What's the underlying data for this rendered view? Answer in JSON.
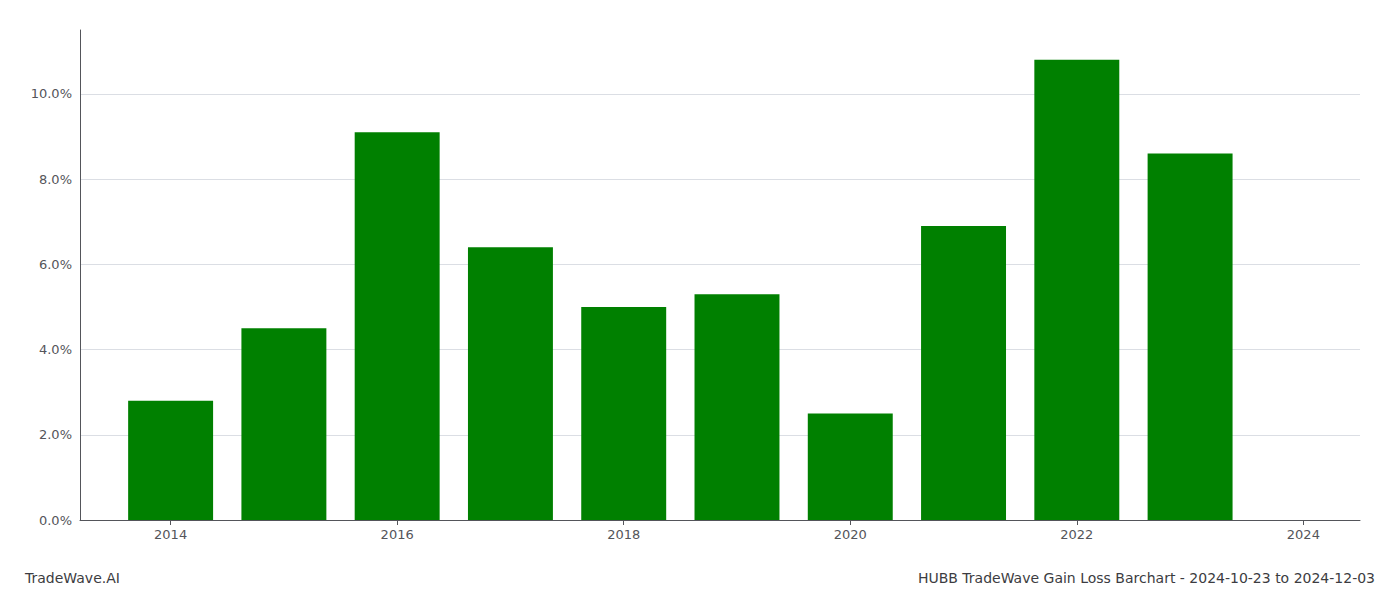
{
  "chart_data": {
    "type": "bar",
    "title": "HUBB TradeWave Gain Loss Barchart - 2024-10-23 to 2024-12-03",
    "annotations": [
      "TradeWave.AI"
    ],
    "x": [
      2014,
      2015,
      2016,
      2017,
      2018,
      2019,
      2020,
      2021,
      2022,
      2023
    ],
    "values": [
      0.028,
      0.045,
      0.091,
      0.064,
      0.05,
      0.053,
      0.025,
      0.069,
      0.108,
      0.086
    ],
    "color": "#008000",
    "xlim": [
      2013.2,
      2024.5
    ],
    "xticks": [
      2014,
      2016,
      2018,
      2020,
      2022,
      2024
    ],
    "ylim": [
      0.0,
      0.115
    ],
    "yticks": [
      {
        "value": 0.0,
        "label": "0.0%"
      },
      {
        "value": 0.02,
        "label": "2.0%"
      },
      {
        "value": 0.04,
        "label": "4.0%"
      },
      {
        "value": 0.06,
        "label": "6.0%"
      },
      {
        "value": 0.08,
        "label": "8.0%"
      },
      {
        "value": 0.1,
        "label": "10.0%"
      }
    ],
    "grid": true
  }
}
